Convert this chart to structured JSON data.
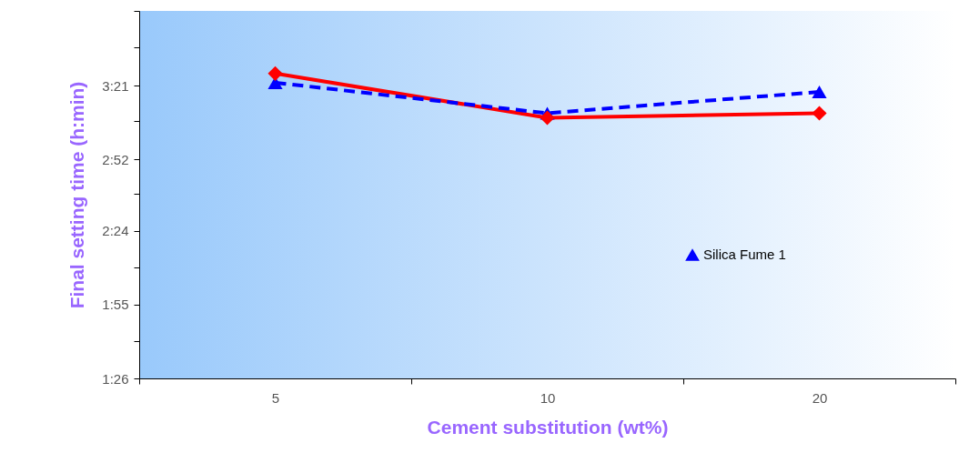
{
  "chart_data": {
    "type": "line",
    "xlabel": "Cement substitution (wt%)",
    "ylabel": "Final setting time (h:min)",
    "categories": [
      "5",
      "10",
      "20"
    ],
    "ylim": [
      1.4333,
      3.84
    ],
    "yticks": [
      {
        "value": 1.4333,
        "label": "1:26"
      },
      {
        "value": 1.68,
        "label": null
      },
      {
        "value": 1.9167,
        "label": "1:55"
      },
      {
        "value": 2.16,
        "label": null
      },
      {
        "value": 2.4,
        "label": "2:24"
      },
      {
        "value": 2.64,
        "label": null
      },
      {
        "value": 2.8667,
        "label": "2:52"
      },
      {
        "value": 3.12,
        "label": null
      },
      {
        "value": 3.35,
        "label": "3:21"
      },
      {
        "value": 3.6,
        "label": null
      },
      {
        "value": 3.84,
        "label": null
      }
    ],
    "series": [
      {
        "color": "#ff0000",
        "marker": "diamond",
        "line_style": "solid",
        "values": [
          3.43,
          3.14,
          3.17
        ]
      },
      {
        "name": "Silica Fume 1",
        "color": "#0000ff",
        "marker": "triangle",
        "line_style": "dashed",
        "values": [
          3.37,
          3.17,
          3.31
        ]
      }
    ],
    "grid": false,
    "legend": "right"
  }
}
